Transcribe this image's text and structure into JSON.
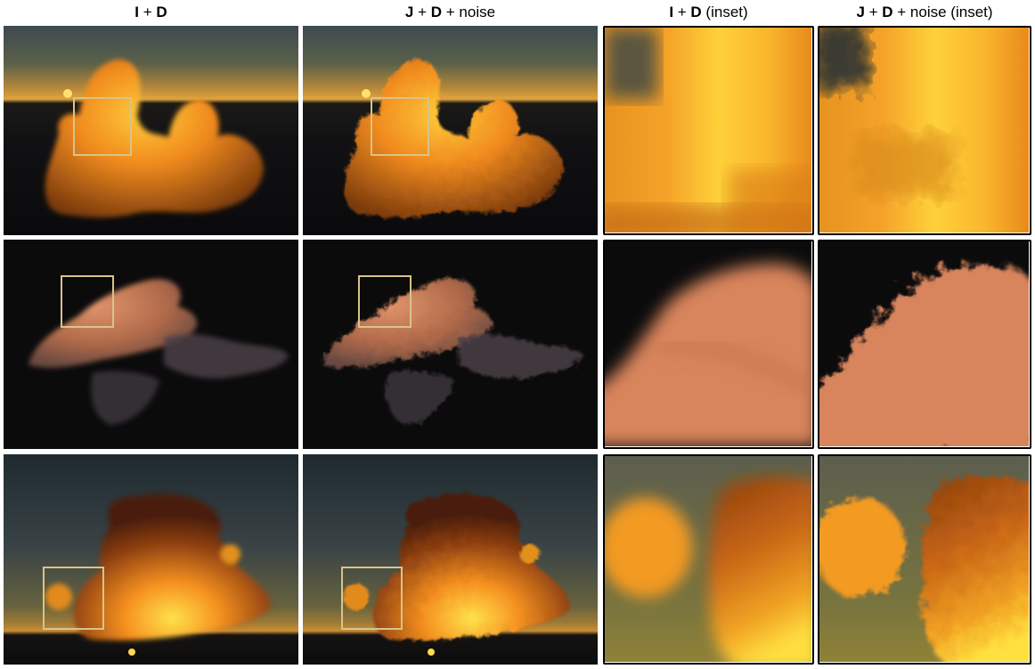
{
  "figure": {
    "columns": [
      {
        "bold_a": "I",
        "plus_1": " + ",
        "bold_b": "D",
        "suffix": ""
      },
      {
        "bold_a": "J",
        "plus_1": " + ",
        "bold_b": "D",
        "suffix": " + noise"
      },
      {
        "bold_a": "I",
        "plus_1": " + ",
        "bold_b": "D",
        "suffix": " (inset)"
      },
      {
        "bold_a": "J",
        "plus_1": " + ",
        "bold_b": "D",
        "suffix": " + noise (inset)"
      }
    ]
  },
  "colors": {
    "inset_box": "#d8c48a",
    "sky_horizon": "#d79a3c",
    "cloud_orange": "#f08a1e",
    "cloud_yellow": "#ffd84a",
    "cloud_pink": "#d8845c",
    "background_dark": "#0b0b0c"
  }
}
